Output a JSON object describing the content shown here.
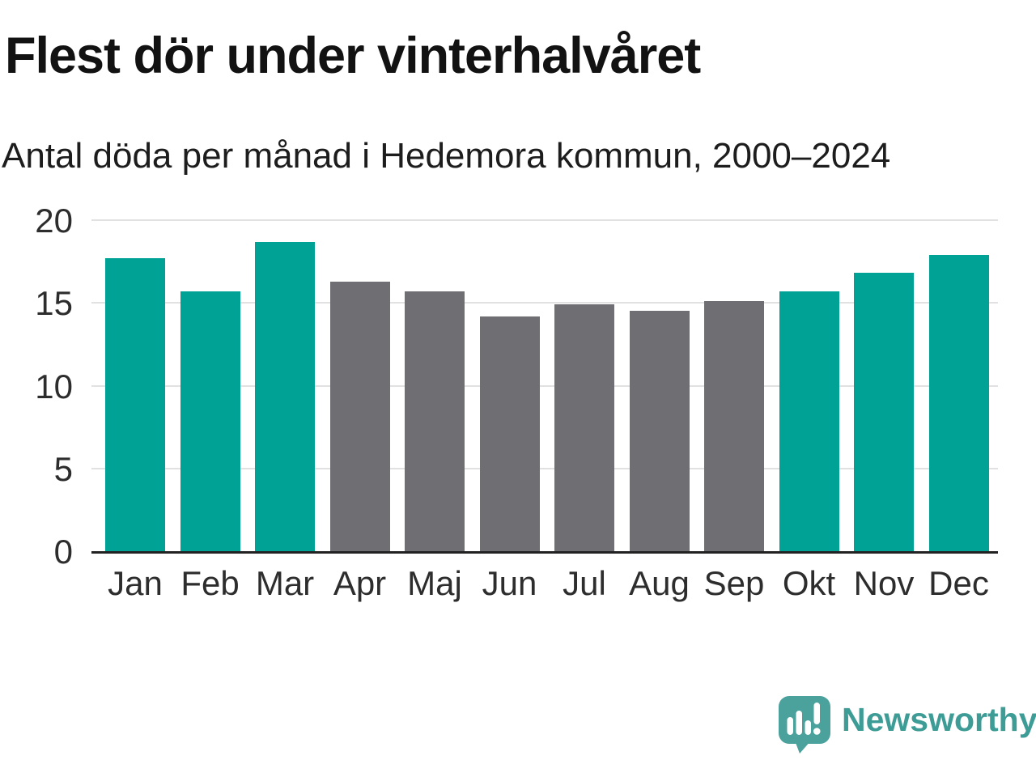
{
  "header": {
    "title": "Flest dör under vinterhalvåret",
    "subtitle": "Antal döda per månad i Hedemora kommun, 2000–2024"
  },
  "chart_data": {
    "type": "bar",
    "title": "Flest dör under vinterhalvåret",
    "subtitle": "Antal döda per månad i Hedemora kommun, 2000–2024",
    "categories": [
      "Jan",
      "Feb",
      "Mar",
      "Apr",
      "Maj",
      "Jun",
      "Jul",
      "Aug",
      "Sep",
      "Okt",
      "Nov",
      "Dec"
    ],
    "values": [
      17.7,
      15.7,
      18.7,
      16.3,
      15.7,
      14.2,
      14.9,
      14.5,
      15.1,
      15.7,
      16.8,
      17.9
    ],
    "groups": [
      "winter",
      "winter",
      "winter",
      "summer",
      "summer",
      "summer",
      "summer",
      "summer",
      "summer",
      "winter",
      "winter",
      "winter"
    ],
    "group_colors": {
      "winter": "#00a296",
      "summer": "#6f6e73"
    },
    "xlabel": "",
    "ylabel": "",
    "ylim": [
      0,
      20
    ],
    "yticks": [
      0,
      5,
      10,
      15,
      20
    ],
    "grid": "horizontal",
    "gridline_color": "#e1e1e1",
    "axis_line_color": "#222222",
    "legend": "none"
  },
  "branding": {
    "logo_text": "Newsworthy",
    "logo_text_color": "#3e9c96",
    "logo_icon_color": "#4ba29d"
  }
}
